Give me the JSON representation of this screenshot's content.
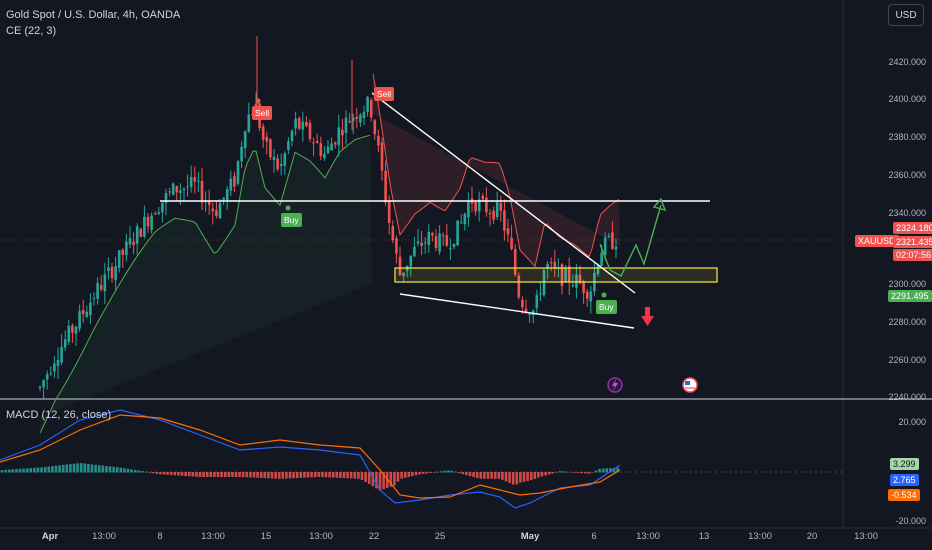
{
  "header": {
    "title": "Gold Spot / U.S. Dollar, 4h, OANDA",
    "indicator": "CE (22, 3)",
    "currency_button": "USD"
  },
  "price_axis": {
    "labels": [
      "2420.000",
      "2400.000",
      "2380.000",
      "2360.000",
      "2340.000",
      "2300.000",
      "2280.000",
      "2260.000",
      "2240.000"
    ]
  },
  "price_tags": {
    "symbol": "XAUUSD",
    "ce_upper": "2324.180",
    "last_price": "2321.435",
    "countdown": "02:07:56",
    "ce_lower": "2291.495"
  },
  "macd": {
    "title": "MACD (12, 26, close)",
    "axis_labels": [
      "20.000",
      "-20.000"
    ],
    "values": {
      "histogram": "3.299",
      "macd": "2.765",
      "signal": "-0.534"
    }
  },
  "time_axis": {
    "labels": [
      {
        "text": "Apr",
        "bold": true
      },
      {
        "text": "13:00",
        "bold": false
      },
      {
        "text": "8",
        "bold": false
      },
      {
        "text": "13:00",
        "bold": false
      },
      {
        "text": "15",
        "bold": false
      },
      {
        "text": "13:00",
        "bold": false
      },
      {
        "text": "22",
        "bold": false
      },
      {
        "text": "25",
        "bold": false
      },
      {
        "text": "May",
        "bold": true
      },
      {
        "text": "6",
        "bold": false
      },
      {
        "text": "13:00",
        "bold": false
      },
      {
        "text": "13",
        "bold": false
      },
      {
        "text": "13:00",
        "bold": false
      },
      {
        "text": "20",
        "bold": false
      },
      {
        "text": "13:00",
        "bold": false
      }
    ]
  },
  "signals": [
    {
      "label": "Sell",
      "type": "sell"
    },
    {
      "label": "Buy",
      "type": "buy"
    },
    {
      "label": "Sell",
      "type": "sell"
    },
    {
      "label": "Buy",
      "type": "buy"
    }
  ],
  "colors": {
    "background": "#131722",
    "bull": "#26a69a",
    "bear": "#ef5350",
    "ce_long": "#4caf50",
    "ce_short": "#ef5350",
    "macd_line": "#2962ff",
    "signal_line": "#ff6d00",
    "forecast": "#4caf50",
    "zone": "#ffeb3b",
    "down_arrow": "#f23645"
  },
  "icons": [
    "lightning-event-icon",
    "us-flag-event-icon"
  ]
}
